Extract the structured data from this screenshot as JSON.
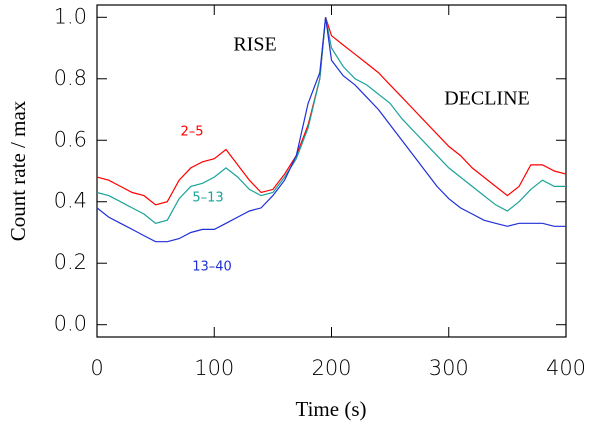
{
  "chart_data": {
    "type": "line",
    "xlabel": "Time (s)",
    "ylabel": "Count rate / max",
    "annotations": [
      "RISE",
      "DECLINE"
    ],
    "xlim": [
      0,
      400
    ],
    "xticks": [
      0,
      100,
      200,
      300,
      400
    ],
    "ylim": [
      -0.04,
      1.04
    ],
    "yticks": [
      {
        "value": 0,
        "label": "0.0"
      },
      {
        "value": 0.2,
        "label": "0.2"
      },
      {
        "value": 0.4,
        "label": "0.4"
      },
      {
        "value": 0.6,
        "label": "0.6"
      },
      {
        "value": 0.8,
        "label": "0.8"
      },
      {
        "value": 1,
        "label": "1.0"
      }
    ],
    "x": [
      0,
      10,
      20,
      30,
      40,
      50,
      60,
      70,
      80,
      90,
      100,
      110,
      120,
      130,
      140,
      150,
      160,
      170,
      180,
      190,
      195,
      200,
      210,
      220,
      230,
      240,
      250,
      260,
      270,
      280,
      290,
      300,
      310,
      320,
      330,
      340,
      350,
      360,
      370,
      380,
      390,
      400
    ],
    "series": [
      {
        "name": "2–5",
        "color": "#ff0000",
        "values": [
          0.48,
          0.47,
          0.45,
          0.43,
          0.42,
          0.39,
          0.4,
          0.47,
          0.51,
          0.53,
          0.54,
          0.57,
          0.52,
          0.47,
          0.43,
          0.44,
          0.49,
          0.55,
          0.65,
          0.8,
          1.0,
          0.94,
          0.91,
          0.88,
          0.85,
          0.82,
          0.78,
          0.74,
          0.7,
          0.66,
          0.62,
          0.58,
          0.55,
          0.51,
          0.48,
          0.45,
          0.42,
          0.45,
          0.52,
          0.52,
          0.5,
          0.49
        ]
      },
      {
        "name": "5–13",
        "color": "#1aa39a",
        "values": [
          0.43,
          0.42,
          0.4,
          0.38,
          0.36,
          0.33,
          0.34,
          0.41,
          0.45,
          0.46,
          0.48,
          0.51,
          0.48,
          0.44,
          0.42,
          0.43,
          0.48,
          0.54,
          0.64,
          0.8,
          1.0,
          0.9,
          0.84,
          0.8,
          0.78,
          0.75,
          0.72,
          0.67,
          0.63,
          0.59,
          0.55,
          0.51,
          0.48,
          0.45,
          0.42,
          0.39,
          0.37,
          0.4,
          0.44,
          0.47,
          0.45,
          0.45
        ]
      },
      {
        "name": "13–40",
        "color": "#1f2fd8",
        "values": [
          0.38,
          0.35,
          0.33,
          0.31,
          0.29,
          0.27,
          0.27,
          0.28,
          0.3,
          0.31,
          0.31,
          0.33,
          0.35,
          0.37,
          0.38,
          0.42,
          0.47,
          0.55,
          0.72,
          0.82,
          1.0,
          0.86,
          0.81,
          0.78,
          0.74,
          0.7,
          0.65,
          0.6,
          0.55,
          0.5,
          0.45,
          0.41,
          0.38,
          0.36,
          0.34,
          0.33,
          0.32,
          0.33,
          0.33,
          0.33,
          0.32,
          0.32
        ]
      }
    ]
  }
}
